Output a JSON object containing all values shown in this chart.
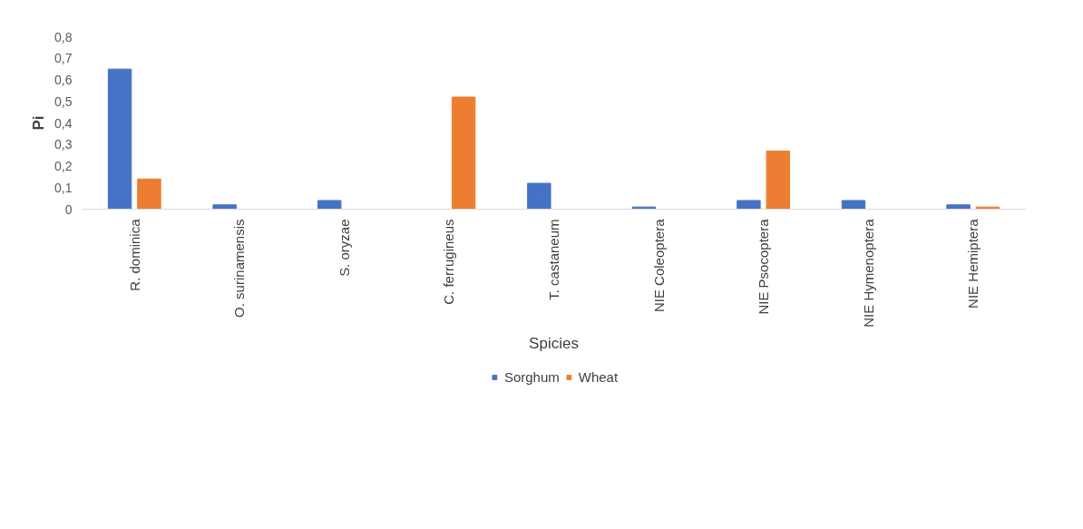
{
  "chart_data": {
    "type": "bar",
    "xlabel": "Spicies",
    "ylabel": "Pi",
    "categories": [
      "R. dominica",
      "O. surinamensis",
      "S. oryzae",
      "C. ferrugineus",
      "T. castaneum",
      "NIE Coleoptera",
      "NIE Psocoptera",
      "NIE Hymenoptera",
      "NIE Hemiptera"
    ],
    "series": [
      {
        "name": "Sorghum",
        "color": "#4472c4",
        "values": [
          0.65,
          0.02,
          0.04,
          0,
          0.12,
          0.01,
          0.04,
          0.04,
          0.02
        ]
      },
      {
        "name": "Wheat",
        "color": "#ed7d31",
        "values": [
          0.14,
          0,
          0,
          0.52,
          0,
          0,
          0.27,
          0,
          0.01
        ]
      }
    ],
    "ylim": [
      0,
      0.8
    ],
    "yticks": [
      0,
      {
        "value": 0.1,
        "label": "0,1"
      },
      {
        "value": 0.2,
        "label": "0,2"
      },
      {
        "value": 0.3,
        "label": "0,3"
      },
      {
        "value": 0.4,
        "label": "0,4"
      },
      {
        "value": 0.5,
        "label": "0,5"
      },
      {
        "value": 0.6,
        "label": "0,6"
      },
      {
        "value": 0.7,
        "label": "0,7"
      },
      {
        "value": 0.8,
        "label": "0,8"
      }
    ],
    "grid": false,
    "legend": "bottom"
  }
}
